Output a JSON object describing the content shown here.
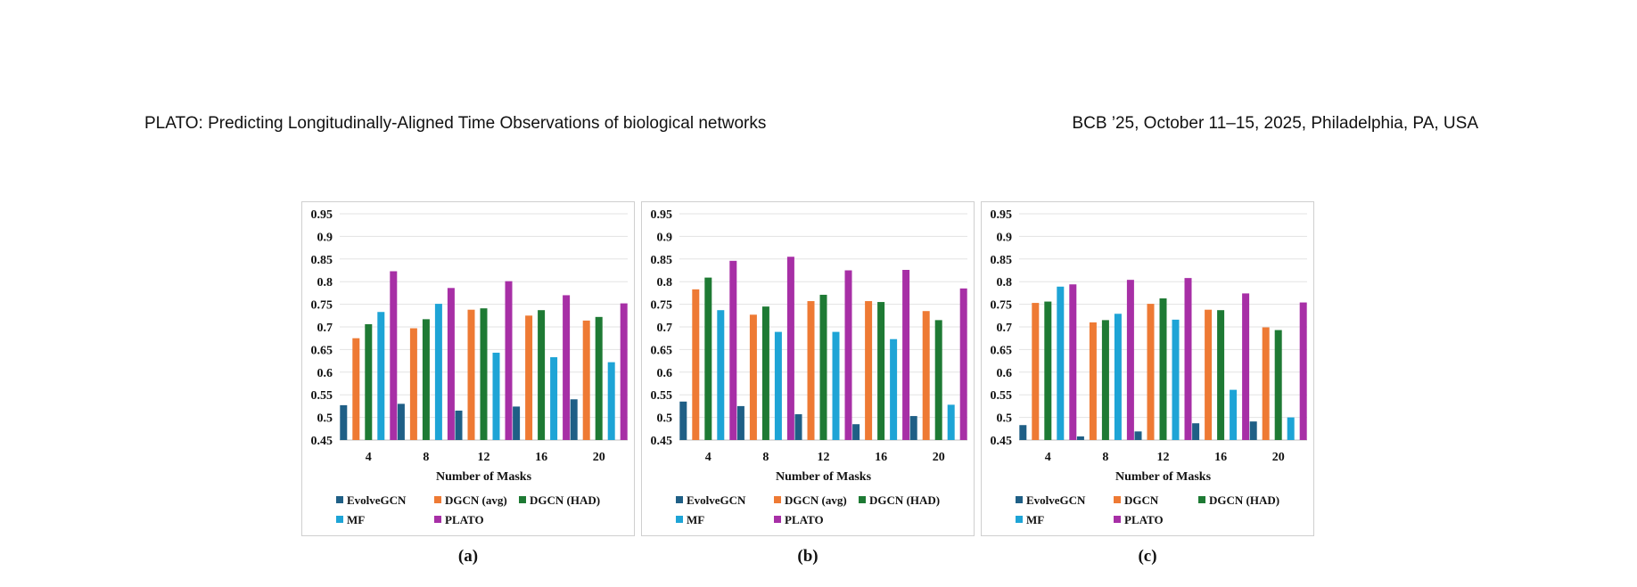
{
  "header": {
    "left": "PLATO: Predicting Longitudinally-Aligned Time Observations of biological networks",
    "right": "BCB ’25, October 11–15, 2025, Philadelphia, PA, USA"
  },
  "colors": {
    "EvolveGCN": "#1f5f86",
    "DGCN_avg": "#ee7a34",
    "DGCN_HAD": "#1e7a34",
    "MF": "#1ea4d6",
    "PLATO": "#a72fa6"
  },
  "chart_data": [
    {
      "type": "bar",
      "caption": "(a)",
      "xlabel": "Number of Masks",
      "ylabel": "",
      "categories": [
        "4",
        "8",
        "12",
        "16",
        "20"
      ],
      "ylim": [
        0.45,
        0.95
      ],
      "yticks": [
        "0.95",
        "0.9",
        "0.85",
        "0.8",
        "0.75",
        "0.7",
        "0.65",
        "0.6",
        "0.55",
        "0.5",
        "0.45"
      ],
      "grid": true,
      "legend": "bottom",
      "series": [
        {
          "name": "EvolveGCN",
          "values": [
            0.527,
            0.53,
            0.515,
            0.524,
            0.54
          ]
        },
        {
          "name": "DGCN (avg)",
          "values": [
            0.675,
            0.697,
            0.738,
            0.725,
            0.714
          ]
        },
        {
          "name": "DGCN (HAD)",
          "values": [
            0.706,
            0.717,
            0.741,
            0.737,
            0.722
          ]
        },
        {
          "name": "MF",
          "values": [
            0.733,
            0.751,
            0.643,
            0.633,
            0.622
          ]
        },
        {
          "name": "PLATO",
          "values": [
            0.823,
            0.786,
            0.801,
            0.77,
            0.752
          ]
        }
      ]
    },
    {
      "type": "bar",
      "caption": "(b)",
      "xlabel": "Number of Masks",
      "ylabel": "",
      "categories": [
        "4",
        "8",
        "12",
        "16",
        "20"
      ],
      "ylim": [
        0.45,
        0.95
      ],
      "yticks": [
        "0.95",
        "0.9",
        "0.85",
        "0.8",
        "0.75",
        "0.7",
        "0.65",
        "0.6",
        "0.55",
        "0.5",
        "0.45"
      ],
      "grid": true,
      "legend": "bottom",
      "series": [
        {
          "name": "EvolveGCN",
          "values": [
            0.535,
            0.525,
            0.507,
            0.485,
            0.503
          ]
        },
        {
          "name": "DGCN (avg)",
          "values": [
            0.783,
            0.727,
            0.757,
            0.757,
            0.735
          ]
        },
        {
          "name": "DGCN (HAD)",
          "values": [
            0.809,
            0.745,
            0.771,
            0.755,
            0.715
          ]
        },
        {
          "name": "MF",
          "values": [
            0.737,
            0.689,
            0.689,
            0.673,
            0.528
          ]
        },
        {
          "name": "PLATO",
          "values": [
            0.846,
            0.855,
            0.825,
            0.826,
            0.785
          ]
        }
      ]
    },
    {
      "type": "bar",
      "caption": "(c)",
      "xlabel": "Number of Masks",
      "ylabel": "",
      "categories": [
        "4",
        "8",
        "12",
        "16",
        "20"
      ],
      "ylim": [
        0.45,
        0.95
      ],
      "yticks": [
        "0.95",
        "0.9",
        "0.85",
        "0.8",
        "0.75",
        "0.7",
        "0.65",
        "0.6",
        "0.55",
        "0.5",
        "0.45"
      ],
      "grid": true,
      "legend": "bottom",
      "series": [
        {
          "name": "EvolveGCN",
          "values": [
            0.483,
            0.458,
            0.469,
            0.487,
            0.491
          ]
        },
        {
          "name": "DGCN",
          "values": [
            0.753,
            0.71,
            0.751,
            0.738,
            0.699
          ]
        },
        {
          "name": "DGCN (HAD)",
          "values": [
            0.756,
            0.715,
            0.763,
            0.737,
            0.693
          ]
        },
        {
          "name": "MF",
          "values": [
            0.789,
            0.729,
            0.716,
            0.561,
            0.5
          ]
        },
        {
          "name": "PLATO",
          "values": [
            0.794,
            0.804,
            0.808,
            0.774,
            0.754
          ]
        }
      ]
    }
  ]
}
